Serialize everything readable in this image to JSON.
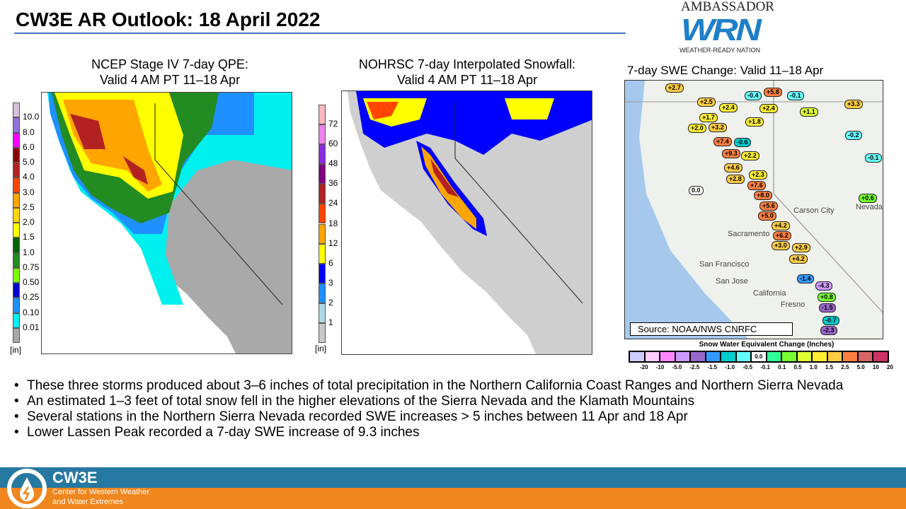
{
  "title": "CW3E AR Outlook: 18 April 2022",
  "logo_wrn": {
    "top": "AMBASSADOR",
    "tm": "TM",
    "mark": "WRN",
    "bottom": "WEATHER-READY NATION"
  },
  "panels": {
    "qpe": {
      "title_line1": "NCEP Stage IV 7-day QPE:",
      "title_line2": "Valid 4 AM PT 11–18 Apr",
      "unit": "[in]",
      "legend": [
        {
          "label": "0.01",
          "color": "#a9a9a9"
        },
        {
          "label": "0.10",
          "color": "#00f0f0"
        },
        {
          "label": "0.25",
          "color": "#1e90ff"
        },
        {
          "label": "0.50",
          "color": "#0000cd"
        },
        {
          "label": "0.75",
          "color": "#7cfc00"
        },
        {
          "label": "1.0",
          "color": "#228b22"
        },
        {
          "label": "1.5",
          "color": "#006400"
        },
        {
          "label": "2.0",
          "color": "#ffff00"
        },
        {
          "label": "2.5",
          "color": "#ffd700"
        },
        {
          "label": "3.0",
          "color": "#ffa500"
        },
        {
          "label": "4.0",
          "color": "#ff4500"
        },
        {
          "label": "5.0",
          "color": "#b22222"
        },
        {
          "label": "6.0",
          "color": "#8b0000"
        },
        {
          "label": "8.0",
          "color": "#ff00ff"
        },
        {
          "label": "10.0",
          "color": "#9370db"
        },
        {
          "label": "",
          "color": "#d8bfd8"
        }
      ]
    },
    "snow": {
      "title_line1": "NOHRSC 7-day Interpolated Snowfall:",
      "title_line2": "Valid 4 AM PT 11–18 Apr",
      "unit": "[in]",
      "legend": [
        {
          "label": "1",
          "color": "#c8c8c8"
        },
        {
          "label": "2",
          "color": "#add8e6"
        },
        {
          "label": "3",
          "color": "#1e90ff"
        },
        {
          "label": "6",
          "color": "#0000ff"
        },
        {
          "label": "12",
          "color": "#ffff00"
        },
        {
          "label": "18",
          "color": "#ffa500"
        },
        {
          "label": "24",
          "color": "#ff4500"
        },
        {
          "label": "36",
          "color": "#b22222"
        },
        {
          "label": "48",
          "color": "#800080"
        },
        {
          "label": "60",
          "color": "#8a2be2"
        },
        {
          "label": "72",
          "color": "#ee82ee"
        },
        {
          "label": "",
          "color": "#ffb6c1"
        }
      ]
    },
    "swe": {
      "title": "7-day SWE Change: Valid 11–18 Apr",
      "source": "Source: NOAA/NWS CNRFC",
      "places": [
        "Carson City",
        "Sacramento",
        "San Francisco",
        "San Jose",
        "California",
        "Fresno",
        "Nevada"
      ],
      "stations": [
        "+2.7",
        "-0.4",
        "+5.8",
        "-0.1",
        "+2.5",
        "+2.4",
        "+2.4",
        "+1.1",
        "+3.3",
        "+1.7",
        "+3.2",
        "+2.0",
        "+1.8",
        "-0.2",
        "+7.4",
        "-0.6",
        "+9.3",
        "+2.2",
        "-0.1",
        "+4.6",
        "+2.3",
        "+2.8",
        "+7.6",
        "0.0",
        "+8.0",
        "+5.6",
        "+0.6",
        "+5.0",
        "+4.2",
        "+6.2",
        "+3.0",
        "+2.9",
        "+4.2",
        "-1.4",
        "-4.3",
        "+0.8",
        "-1.5",
        "-0.7",
        "-2.3"
      ],
      "legend_title": "Snow Water Equivalent Change (Inches)",
      "legend_center": "0.0",
      "legend_colors": [
        "#ccccff",
        "#ffccff",
        "#ff88ff",
        "#cc99ff",
        "#9966cc",
        "#3399ff",
        "#00cccc",
        "#66ffff",
        "#ffffff",
        "#33ff99",
        "#77ff33",
        "#ddff33",
        "#ffee33",
        "#ffcc44",
        "#ff7f3f",
        "#d96666",
        "#cc3366"
      ],
      "legend_ticks": [
        "-20",
        "-10",
        "-5.0",
        "-2.5",
        "-1.5",
        "-1.0",
        "-0.5",
        "-0.1",
        "0.1",
        "0.5",
        "1.0",
        "1.5",
        "2.5",
        "5.0",
        "10",
        "20"
      ]
    }
  },
  "bullets": [
    "These three storms produced about 3–6 inches of total precipitation in the Northern California Coast Ranges and Northern Sierra Nevada",
    "An estimated 1–3 feet of total snow fell in the higher elevations of the Sierra Nevada and the Klamath Mountains",
    "Several stations in the Northern Sierra Nevada recorded SWE increases > 5 inches between 11 Apr and 18 Apr",
    "Lower Lassen Peak recorded a 7-day SWE increase of 9.3 inches"
  ],
  "footer": {
    "name": "CW3E",
    "sub1": "Center for Western Weather",
    "sub2": "and Water Extremes",
    "colors": {
      "top": "#2778a0",
      "bottom": "#f0861e"
    }
  }
}
